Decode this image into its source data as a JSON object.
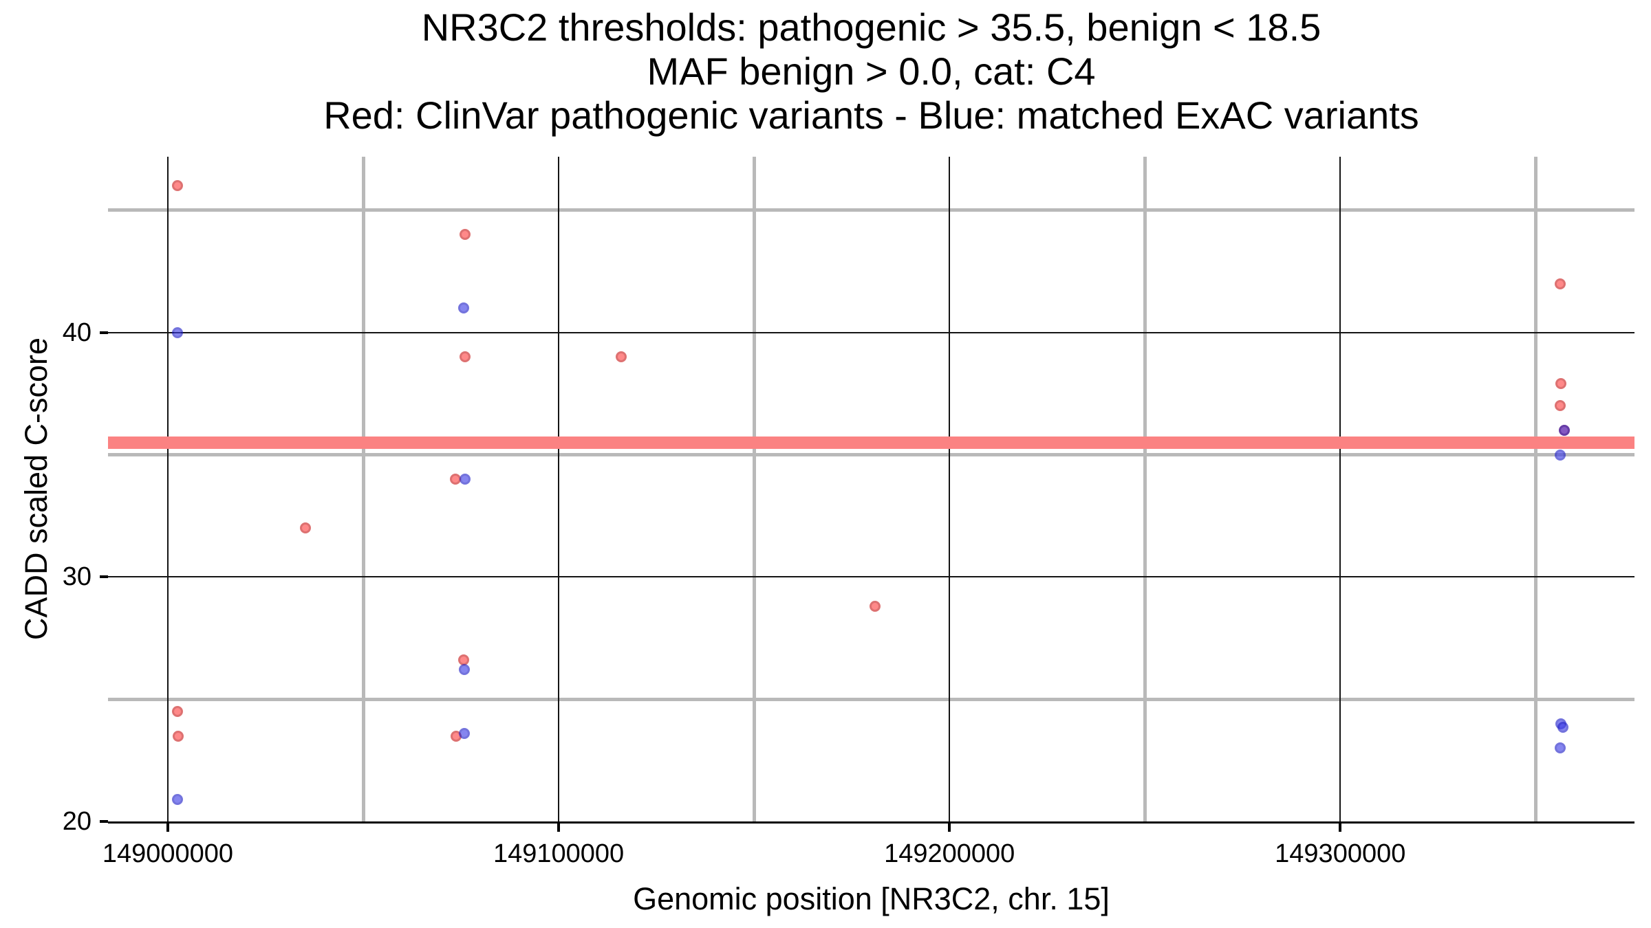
{
  "title": {
    "line1": "NR3C2 thresholds: pathogenic > 35.5, benign < 18.5",
    "line2": "MAF benign > 0.0, cat: C4",
    "line3": "Red: ClinVar pathogenic variants - Blue: matched ExAC variants"
  },
  "chart_data": {
    "type": "scatter",
    "title": "NR3C2 thresholds: pathogenic > 35.5, benign < 18.5 | MAF benign > 0.0, cat: C4 | Red: ClinVar pathogenic variants - Blue: matched ExAC variants",
    "xlabel": "Genomic position [NR3C2, chr. 15]",
    "ylabel": "CADD scaled C-score",
    "xlim": [
      148984690,
      149375290
    ],
    "ylim": [
      20,
      47.19
    ],
    "grid": "major-black-minor-gray",
    "x_ticks": [
      {
        "value": 149000000,
        "label": "149000000"
      },
      {
        "value": 149100000,
        "label": "149100000"
      },
      {
        "value": 149200000,
        "label": "149200000"
      },
      {
        "value": 149300000,
        "label": "149300000"
      }
    ],
    "x_minor": [
      149050000,
      149150000,
      149250000,
      149350000
    ],
    "y_ticks": [
      {
        "value": 20,
        "label": "20",
        "grid": false
      },
      {
        "value": 30,
        "label": "30",
        "grid": true
      },
      {
        "value": 40,
        "label": "40",
        "grid": true
      }
    ],
    "y_minor": [
      25,
      35,
      45
    ],
    "threshold_band": {
      "y": 35.5,
      "half_height_units": 0.25,
      "color": "#fb8282",
      "meaning": "pathogenic threshold > 35.5"
    },
    "thresholds": {
      "pathogenic": 35.5,
      "benign": 18.5,
      "maf_benign": 0.0,
      "category": "C4"
    },
    "series": [
      {
        "name": "ClinVar pathogenic variants",
        "color": "#ff3c3c",
        "edge_color": "#c81414",
        "points": [
          [
            149002500,
            46.0
          ],
          [
            149076000,
            44.0
          ],
          [
            149076000,
            39.0
          ],
          [
            149116000,
            39.0
          ],
          [
            149035200,
            32.0
          ],
          [
            149073600,
            34.0
          ],
          [
            149181000,
            28.8
          ],
          [
            149075700,
            26.6
          ],
          [
            149002500,
            24.5
          ],
          [
            149073800,
            23.5
          ],
          [
            149002600,
            23.5
          ],
          [
            149356300,
            42.0
          ],
          [
            149356500,
            37.9
          ],
          [
            149356300,
            37.0
          ],
          [
            149357400,
            36.0
          ]
        ]
      },
      {
        "name": "matched ExAC variants",
        "color": "#3c3ce6",
        "edge_color": "#1e1ec8",
        "points": [
          [
            149002500,
            40.0
          ],
          [
            149075700,
            41.0
          ],
          [
            149076100,
            34.0
          ],
          [
            149075900,
            26.2
          ],
          [
            149075900,
            23.6
          ],
          [
            149002500,
            20.9
          ],
          [
            149357400,
            36.0
          ],
          [
            149356300,
            35.0
          ],
          [
            149356500,
            24.0
          ],
          [
            149357000,
            23.85
          ],
          [
            149356200,
            23.0
          ]
        ]
      }
    ]
  }
}
